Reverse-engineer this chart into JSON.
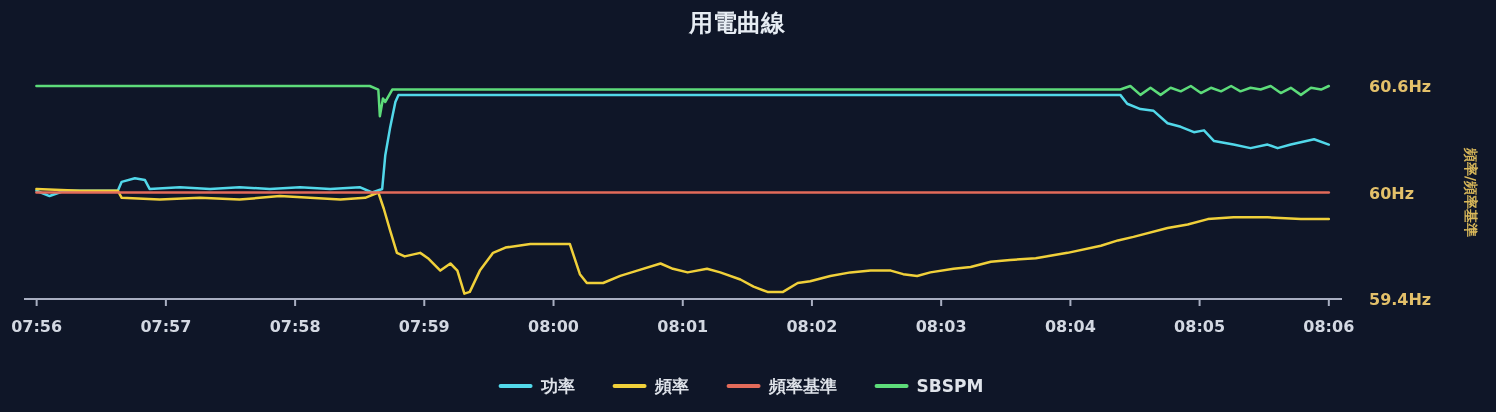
{
  "chart_data": {
    "type": "line",
    "title": "用電曲線",
    "ylabel": "頻率/頻率基準",
    "xlim": [
      7.9317,
      8.1017
    ],
    "xticks": [
      {
        "value": 7.93333,
        "label": "07:56"
      },
      {
        "value": 7.95,
        "label": "07:57"
      },
      {
        "value": 7.96667,
        "label": "07:58"
      },
      {
        "value": 7.98333,
        "label": "07:59"
      },
      {
        "value": 8.0,
        "label": "08:00"
      },
      {
        "value": 8.01667,
        "label": "08:01"
      },
      {
        "value": 8.03333,
        "label": "08:02"
      },
      {
        "value": 8.05,
        "label": "08:03"
      },
      {
        "value": 8.06667,
        "label": "08:04"
      },
      {
        "value": 8.08333,
        "label": "08:05"
      },
      {
        "value": 8.1,
        "label": "08:06"
      }
    ],
    "ylim": [
      59.4,
      60.6
    ],
    "yticks": [
      {
        "value": 59.4,
        "label": "59.4Hz"
      },
      {
        "value": 60,
        "label": "60Hz"
      },
      {
        "value": 60.6,
        "label": "60.6Hz"
      }
    ],
    "legend": "bottom",
    "series": [
      {
        "name": "功率",
        "color": "#52d8ea",
        "x": [
          7.9333,
          7.935,
          7.9369,
          7.9438,
          7.9443,
          7.946,
          7.9473,
          7.9479,
          7.9518,
          7.9557,
          7.9595,
          7.9634,
          7.9673,
          7.9712,
          7.975,
          7.9766,
          7.9779,
          7.9783,
          7.9789,
          7.9796,
          7.98,
          8.0731,
          8.074,
          8.0757,
          8.0774,
          8.0792,
          8.0809,
          8.0826,
          8.0839,
          8.0852,
          8.0877,
          8.0899,
          8.0921,
          8.0934,
          8.0951,
          8.0981,
          8.1
        ],
        "values": [
          60.01,
          59.98,
          60.01,
          60.01,
          60.06,
          60.08,
          60.07,
          60.02,
          60.03,
          60.02,
          60.03,
          60.02,
          60.03,
          60.02,
          60.03,
          60.0,
          60.02,
          60.21,
          60.36,
          60.51,
          60.55,
          60.55,
          60.5,
          60.47,
          60.46,
          60.39,
          60.37,
          60.34,
          60.35,
          60.29,
          60.27,
          60.25,
          60.27,
          60.25,
          60.27,
          60.3,
          60.27
        ]
      },
      {
        "name": "頻率",
        "color": "#f0d03a",
        "x": [
          7.9333,
          7.9389,
          7.9438,
          7.9443,
          7.9492,
          7.9544,
          7.9595,
          7.9647,
          7.9686,
          7.9725,
          7.9757,
          7.9774,
          7.9781,
          7.9789,
          7.9798,
          7.9808,
          7.9828,
          7.9838,
          7.9854,
          7.9867,
          7.9876,
          7.9885,
          7.9892,
          7.9905,
          7.9922,
          7.9938,
          7.997,
          8.0002,
          8.0021,
          8.0034,
          8.0043,
          8.0064,
          8.0086,
          8.0108,
          8.0138,
          8.0154,
          8.0173,
          8.0198,
          8.0215,
          8.0241,
          8.0258,
          8.0276,
          8.0296,
          8.0315,
          8.0331,
          8.0357,
          8.0383,
          8.0409,
          8.0435,
          8.0451,
          8.0469,
          8.0486,
          8.0516,
          8.0538,
          8.0564,
          8.0589,
          8.0622,
          8.0663,
          8.0706,
          8.0728,
          8.0748,
          8.0792,
          8.0818,
          8.0844,
          8.0877,
          8.0921,
          8.0964,
          8.1
        ],
        "values": [
          60.02,
          60.01,
          60.01,
          59.97,
          59.96,
          59.97,
          59.96,
          59.98,
          59.97,
          59.96,
          59.97,
          60.0,
          59.91,
          59.79,
          59.66,
          59.64,
          59.66,
          59.63,
          59.56,
          59.6,
          59.56,
          59.43,
          59.44,
          59.56,
          59.66,
          59.69,
          59.71,
          59.71,
          59.71,
          59.54,
          59.49,
          59.49,
          59.53,
          59.56,
          59.6,
          59.57,
          59.55,
          59.57,
          59.55,
          59.51,
          59.47,
          59.44,
          59.44,
          59.49,
          59.5,
          59.53,
          59.55,
          59.56,
          59.56,
          59.54,
          59.53,
          59.55,
          59.57,
          59.58,
          59.61,
          59.62,
          59.63,
          59.66,
          59.7,
          59.73,
          59.75,
          59.8,
          59.82,
          59.85,
          59.86,
          59.86,
          59.85,
          59.85
        ]
      },
      {
        "name": "頻率基準",
        "color": "#e36b5a",
        "x": [
          7.9333,
          8.1
        ],
        "values": [
          60,
          60
        ]
      },
      {
        "name": "SBSPM",
        "color": "#5ddc7a",
        "x": [
          7.9333,
          7.9763,
          7.9774,
          7.9776,
          7.978,
          7.9783,
          7.9792,
          8.0731,
          8.0744,
          8.0757,
          8.077,
          8.0783,
          8.0796,
          8.0809,
          8.0822,
          8.0835,
          8.0848,
          8.0861,
          8.0874,
          8.0886,
          8.0899,
          8.0912,
          8.0925,
          8.0938,
          8.0951,
          8.0964,
          8.0977,
          8.099,
          8.1
        ],
        "values": [
          60.6,
          60.6,
          60.58,
          60.43,
          60.53,
          60.51,
          60.58,
          60.58,
          60.6,
          60.55,
          60.59,
          60.55,
          60.59,
          60.57,
          60.6,
          60.56,
          60.59,
          60.57,
          60.6,
          60.57,
          60.59,
          60.58,
          60.6,
          60.56,
          60.59,
          60.55,
          60.59,
          60.58,
          60.6
        ]
      }
    ]
  }
}
